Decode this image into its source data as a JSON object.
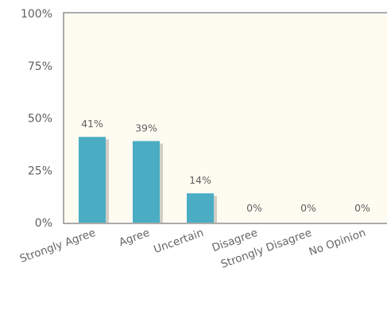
{
  "chart_data": {
    "type": "bar",
    "categories": [
      "Strongly Agree",
      "Agree",
      "Uncertain",
      "Disagree",
      "Strongly Disagree",
      "No Opinion"
    ],
    "values": [
      41,
      39,
      14,
      0,
      0,
      0
    ],
    "data_labels": [
      "41%",
      "39%",
      "14%",
      "0%",
      "0%",
      "0%"
    ],
    "y_ticks": [
      {
        "value": 0,
        "label": "0%"
      },
      {
        "value": 25,
        "label": "25%"
      },
      {
        "value": 50,
        "label": "50%"
      },
      {
        "value": 75,
        "label": "75%"
      },
      {
        "value": 100,
        "label": "100%"
      }
    ],
    "ylim": [
      0,
      100
    ],
    "grid": false,
    "legend": "none",
    "colors": {
      "bar": "#4aadc4",
      "bar_shadow": "#c9c6c0",
      "plot_background": "#fefcf1",
      "plot_border": "#8f8f8f"
    }
  }
}
